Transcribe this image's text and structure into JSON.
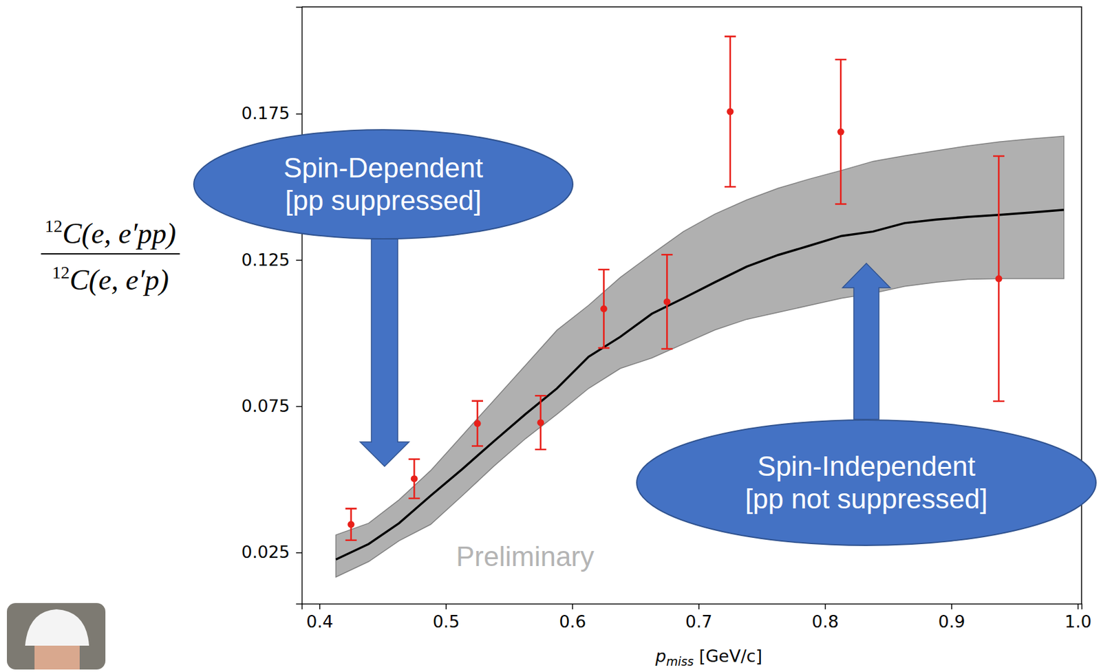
{
  "chart_data": {
    "type": "scatter",
    "x_label": {
      "main": "p",
      "sub": "miss",
      "rest": " [GeV/c]"
    },
    "y_label": {
      "numerator": {
        "sup": "12",
        "text": "C(e, e′pp)"
      },
      "denominator": {
        "sup": "12",
        "text": "C(e, e′p)"
      }
    },
    "xlim": [
      0.386,
      1.003
    ],
    "ylim": [
      0.0075,
      0.2115
    ],
    "xticks": [
      0.4,
      0.5,
      0.6,
      0.7,
      0.8,
      0.9,
      {
        "value": 1,
        "label": "1.0"
      }
    ],
    "yticks": [
      0.025,
      0.075,
      0.125,
      0.175
    ],
    "grid": false,
    "series": [
      {
        "type": "line",
        "color": "#000000",
        "x": [
          0.413,
          0.439,
          0.463,
          0.488,
          0.513,
          0.538,
          0.563,
          0.588,
          0.613,
          0.638,
          0.663,
          0.688,
          0.713,
          0.738,
          0.763,
          0.788,
          0.813,
          0.838,
          0.863,
          0.888,
          0.913,
          0.938,
          0.963,
          0.989
        ],
        "values": [
          0.0226,
          0.0279,
          0.035,
          0.0444,
          0.0535,
          0.063,
          0.0723,
          0.0811,
          0.0919,
          0.0987,
          0.1066,
          0.1119,
          0.1174,
          0.1227,
          0.1267,
          0.1299,
          0.1332,
          0.1347,
          0.1376,
          0.1388,
          0.1397,
          0.1404,
          0.1412,
          0.1421
        ],
        "band_lower": [
          0.0166,
          0.0219,
          0.029,
          0.0346,
          0.0444,
          0.0545,
          0.0639,
          0.0723,
          0.0811,
          0.0879,
          0.0915,
          0.0963,
          0.1011,
          0.1047,
          0.1071,
          0.1095,
          0.1119,
          0.1136,
          0.116,
          0.1174,
          0.1184,
          0.1186,
          0.1186,
          0.1186
        ],
        "band_upper": [
          0.031,
          0.035,
          0.043,
          0.053,
          0.065,
          0.077,
          0.089,
          0.101,
          0.1095,
          0.119,
          0.127,
          0.1347,
          0.1407,
          0.1455,
          0.1495,
          0.1527,
          0.1556,
          0.1587,
          0.1606,
          0.1623,
          0.164,
          0.1654,
          0.1664,
          0.1673
        ]
      },
      {
        "type": "scatter",
        "color": "#e8201a",
        "marker": "circle",
        "x": [
          0.425,
          0.475,
          0.525,
          0.575,
          0.625,
          0.675,
          0.725,
          0.8125,
          0.9375
        ],
        "values": [
          0.0346,
          0.0502,
          0.0691,
          0.0694,
          0.1083,
          0.1107,
          0.1757,
          0.1688,
          0.1186
        ],
        "errors": [
          0.0054,
          0.0067,
          0.0077,
          0.0092,
          0.0134,
          0.0161,
          0.0257,
          0.0247,
          0.0419
        ]
      }
    ],
    "annotations": [
      {
        "text": [
          "Spin-Dependent",
          "[pp suppressed]"
        ]
      },
      {
        "text": [
          "Spin-Independent",
          "[pp not suppressed]"
        ]
      }
    ],
    "watermark": "Preliminary"
  }
}
